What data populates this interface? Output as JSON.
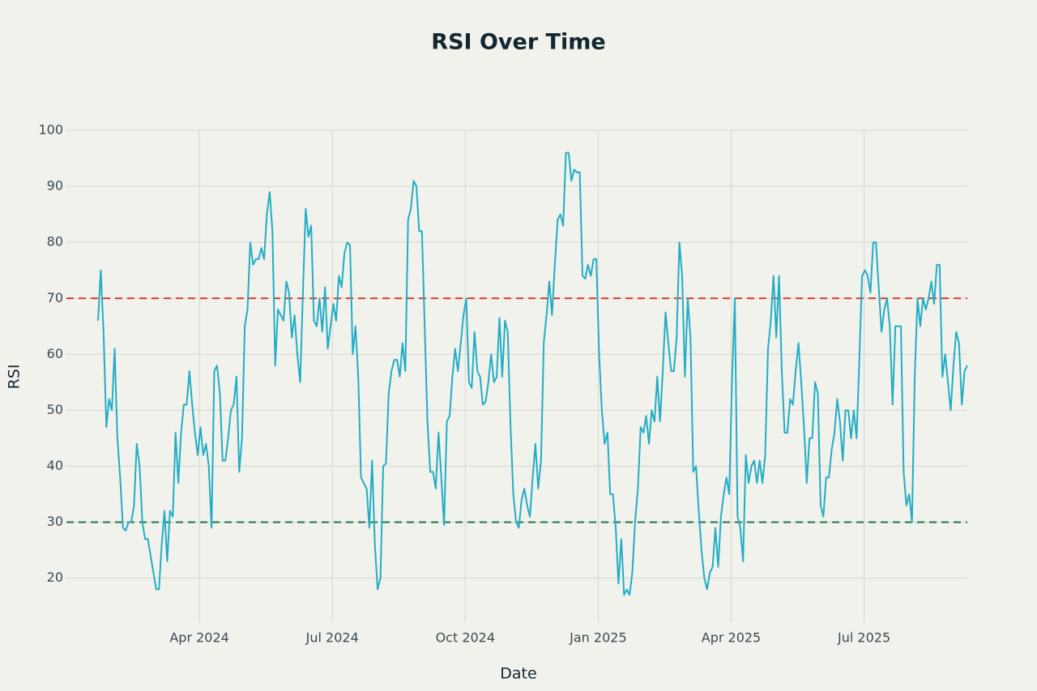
{
  "chart_data": {
    "type": "line",
    "title": "RSI Over Time",
    "xlabel": "Date",
    "ylabel": "RSI",
    "xlim": [
      "2024-01",
      "2025-09"
    ],
    "xticks": [
      {
        "value": "2024-04",
        "label": "Apr 2024"
      },
      {
        "value": "2024-07",
        "label": "Jul 2024"
      },
      {
        "value": "2024-10",
        "label": "Oct 2024"
      },
      {
        "value": "2025-01",
        "label": "Jan 2025"
      },
      {
        "value": "2025-04",
        "label": "Apr 2025"
      },
      {
        "value": "2025-07",
        "label": "Jul 2025"
      }
    ],
    "ylim": [
      12,
      100
    ],
    "yticks": [
      20,
      30,
      40,
      50,
      60,
      70,
      80,
      90,
      100
    ],
    "grid": true,
    "hlines": [
      {
        "value": 70,
        "color": "#d8352e"
      },
      {
        "value": 30,
        "color": "#1e7a47"
      }
    ],
    "series": [
      {
        "name": "RSI",
        "color": "#22adc6",
        "values": [
          66,
          75,
          64,
          47,
          52,
          50,
          61,
          45,
          38,
          29,
          28.5,
          30,
          30,
          33,
          44,
          40,
          30,
          27,
          27,
          24,
          21,
          18,
          18,
          26,
          32,
          23,
          32,
          31,
          46,
          37,
          46,
          51,
          51,
          57,
          51,
          46,
          42,
          47,
          42,
          44,
          40,
          29,
          57,
          58,
          53,
          41,
          41,
          45,
          50,
          51,
          56,
          39,
          45,
          65,
          68,
          80,
          76,
          77,
          77,
          79,
          77,
          85,
          89,
          82,
          58,
          68,
          67,
          66,
          73,
          71,
          63,
          67,
          60,
          55,
          71,
          86,
          81,
          83,
          66,
          65,
          70,
          64,
          72,
          61,
          65,
          69,
          66,
          74,
          72,
          78,
          80,
          79.5,
          60,
          65,
          56,
          38,
          37,
          36,
          29,
          41,
          26,
          18,
          20,
          40,
          40.5,
          53,
          57,
          59,
          59,
          56,
          62,
          57,
          84,
          86,
          91,
          90,
          82,
          82,
          65,
          48,
          39,
          39,
          36,
          46,
          38,
          29.5,
          48,
          49,
          56,
          61,
          57,
          62,
          67,
          70,
          55,
          54,
          64,
          57,
          56,
          51,
          51.5,
          55,
          60,
          55,
          56,
          66.5,
          56,
          66,
          64,
          47,
          35,
          30,
          29,
          34,
          36,
          33,
          31,
          38,
          44,
          36,
          41,
          62,
          67,
          73,
          67,
          76,
          84,
          85,
          83,
          96,
          96,
          91,
          93,
          92.5,
          92.5,
          74,
          73.5,
          76,
          74,
          77,
          77,
          60,
          50,
          44,
          46,
          35,
          35,
          29,
          19,
          27,
          17,
          18,
          17,
          21,
          30,
          36,
          47,
          46,
          49,
          44,
          50,
          48,
          56,
          48,
          57,
          67.5,
          62,
          57,
          57,
          63,
          80,
          74,
          56,
          70,
          63,
          39,
          40,
          32,
          25,
          20,
          18,
          21,
          22,
          29,
          22,
          31,
          35,
          38,
          35,
          55,
          70,
          31,
          29,
          23,
          42,
          37,
          40,
          41,
          37,
          41,
          37,
          42,
          61,
          66,
          74,
          63,
          74,
          57,
          46,
          46,
          52,
          51,
          57,
          62,
          55,
          47,
          37,
          45,
          45,
          55,
          53,
          33,
          31,
          38,
          38,
          43,
          46,
          52,
          48,
          41,
          50,
          50,
          45,
          50,
          45,
          59,
          74,
          75,
          74,
          71,
          80,
          80,
          72,
          64,
          68,
          70,
          65,
          51,
          65,
          65,
          65,
          39,
          33,
          35,
          30,
          56,
          70,
          65,
          70,
          68,
          70,
          73,
          69,
          76,
          76,
          56,
          60,
          55,
          50,
          58,
          64,
          62,
          51,
          57,
          58
        ]
      }
    ]
  }
}
